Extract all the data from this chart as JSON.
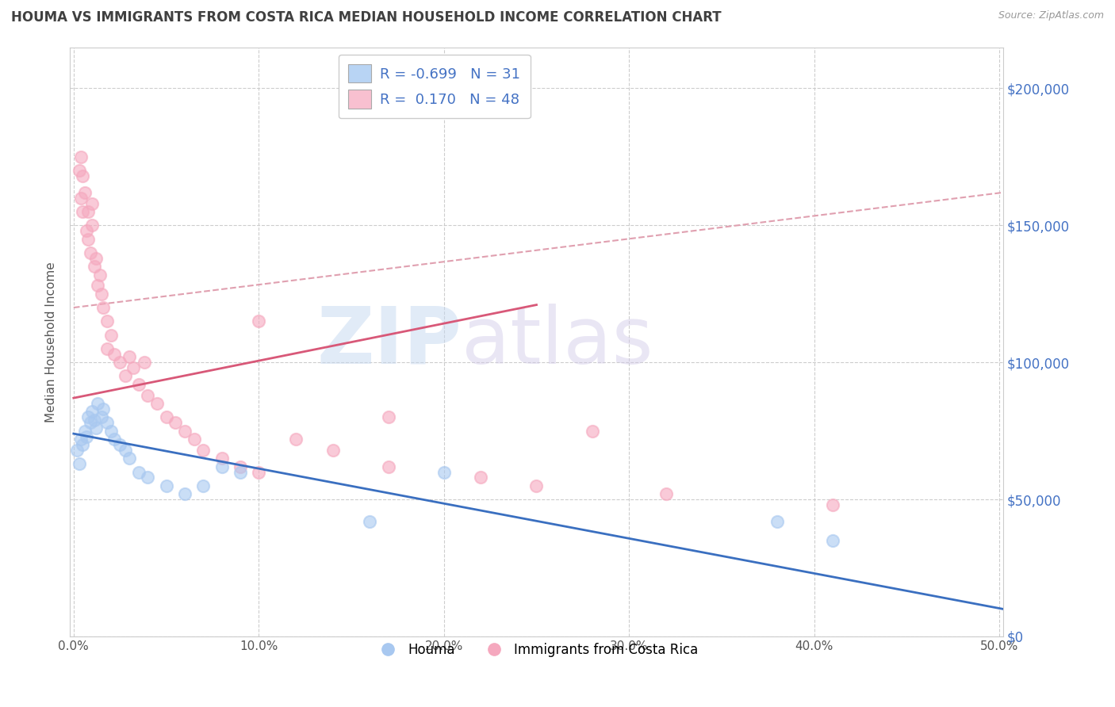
{
  "title": "HOUMA VS IMMIGRANTS FROM COSTA RICA MEDIAN HOUSEHOLD INCOME CORRELATION CHART",
  "source_text": "Source: ZipAtlas.com",
  "ylabel": "Median Household Income",
  "xlim_min": -0.002,
  "xlim_max": 0.502,
  "ylim_min": 0,
  "ylim_max": 215000,
  "xticks": [
    0.0,
    0.1,
    0.2,
    0.3,
    0.4,
    0.5
  ],
  "xticklabels": [
    "0.0%",
    "10.0%",
    "20.0%",
    "30.0%",
    "40.0%",
    "50.0%"
  ],
  "yticks": [
    0,
    50000,
    100000,
    150000,
    200000
  ],
  "ytick_labels_right": [
    "$0",
    "$50,000",
    "$100,000",
    "$150,000",
    "$200,000"
  ],
  "watermark_zip": "ZIP",
  "watermark_atlas": "atlas",
  "legend_r_blue": "-0.699",
  "legend_n_blue": "31",
  "legend_r_pink": "0.170",
  "legend_n_pink": "48",
  "blue_scatter_color": "#a8c8f0",
  "pink_scatter_color": "#f5a8be",
  "blue_legend_color": "#b8d4f4",
  "pink_legend_color": "#f8c0d0",
  "trend_blue_color": "#3a6fc0",
  "trend_pink_color": "#d85878",
  "trend_dashed_color": "#e0a0b0",
  "label_blue": "Houma",
  "label_pink": "Immigrants from Costa Rica",
  "right_tick_color": "#4472c4",
  "title_color": "#404040",
  "background": "#ffffff",
  "grid_color": "#c8c8c8",
  "blue_trend_x0": 0.0,
  "blue_trend_x1": 0.502,
  "blue_trend_y0": 74000,
  "blue_trend_y1": 10000,
  "pink_trend_x0": 0.0,
  "pink_trend_x1": 0.25,
  "pink_trend_y0": 87000,
  "pink_trend_y1": 121000,
  "dashed_trend_x0": 0.0,
  "dashed_trend_x1": 0.502,
  "dashed_trend_y0": 120000,
  "dashed_trend_y1": 162000,
  "blue_x": [
    0.002,
    0.003,
    0.004,
    0.005,
    0.006,
    0.007,
    0.008,
    0.009,
    0.01,
    0.011,
    0.012,
    0.013,
    0.015,
    0.016,
    0.018,
    0.02,
    0.022,
    0.025,
    0.028,
    0.03,
    0.035,
    0.04,
    0.05,
    0.06,
    0.07,
    0.08,
    0.09,
    0.16,
    0.2,
    0.38,
    0.41
  ],
  "blue_y": [
    68000,
    63000,
    72000,
    70000,
    75000,
    73000,
    80000,
    78000,
    82000,
    79000,
    76000,
    85000,
    80000,
    83000,
    78000,
    75000,
    72000,
    70000,
    68000,
    65000,
    60000,
    58000,
    55000,
    52000,
    55000,
    62000,
    60000,
    42000,
    60000,
    42000,
    35000
  ],
  "pink_x": [
    0.003,
    0.004,
    0.004,
    0.005,
    0.005,
    0.006,
    0.007,
    0.008,
    0.008,
    0.009,
    0.01,
    0.01,
    0.011,
    0.012,
    0.013,
    0.014,
    0.015,
    0.016,
    0.018,
    0.018,
    0.02,
    0.022,
    0.025,
    0.028,
    0.03,
    0.032,
    0.035,
    0.038,
    0.04,
    0.045,
    0.05,
    0.055,
    0.06,
    0.065,
    0.07,
    0.08,
    0.09,
    0.1,
    0.12,
    0.14,
    0.17,
    0.22,
    0.1,
    0.25,
    0.32,
    0.41,
    0.17,
    0.28
  ],
  "pink_y": [
    170000,
    160000,
    175000,
    168000,
    155000,
    162000,
    148000,
    155000,
    145000,
    140000,
    150000,
    158000,
    135000,
    138000,
    128000,
    132000,
    125000,
    120000,
    115000,
    105000,
    110000,
    103000,
    100000,
    95000,
    102000,
    98000,
    92000,
    100000,
    88000,
    85000,
    80000,
    78000,
    75000,
    72000,
    68000,
    65000,
    62000,
    60000,
    72000,
    68000,
    62000,
    58000,
    115000,
    55000,
    52000,
    48000,
    80000,
    75000
  ]
}
